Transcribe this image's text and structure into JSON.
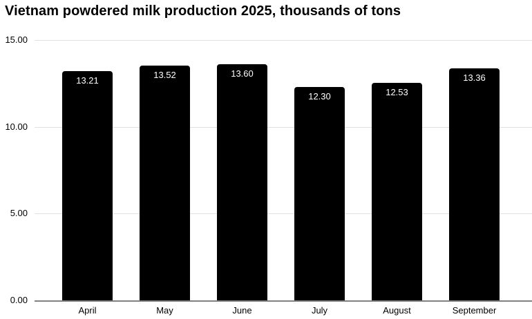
{
  "title": "Vietnam powdered milk production 2025, thousands of tons",
  "chart_data": {
    "type": "bar",
    "title": "Vietnam powdered milk production 2025, thousands of tons",
    "categories": [
      "April",
      "May",
      "June",
      "July",
      "August",
      "September"
    ],
    "values": [
      13.21,
      13.52,
      13.6,
      12.3,
      12.53,
      13.36
    ],
    "value_labels": [
      "13.21",
      "13.52",
      "13.60",
      "12.30",
      "12.53",
      "13.36"
    ],
    "xlabel": "",
    "ylabel": "",
    "ylim": [
      0,
      15
    ],
    "yticks": [
      "0.00",
      "5.00",
      "10.00",
      "15.00"
    ],
    "grid": true,
    "legend": "none",
    "colors": {
      "background": "#ffffff",
      "bar": "#000000",
      "bar_label": "#ffffff",
      "gridline": "#e0e0e0",
      "axis_line": "#808080",
      "text": "#000000"
    }
  }
}
